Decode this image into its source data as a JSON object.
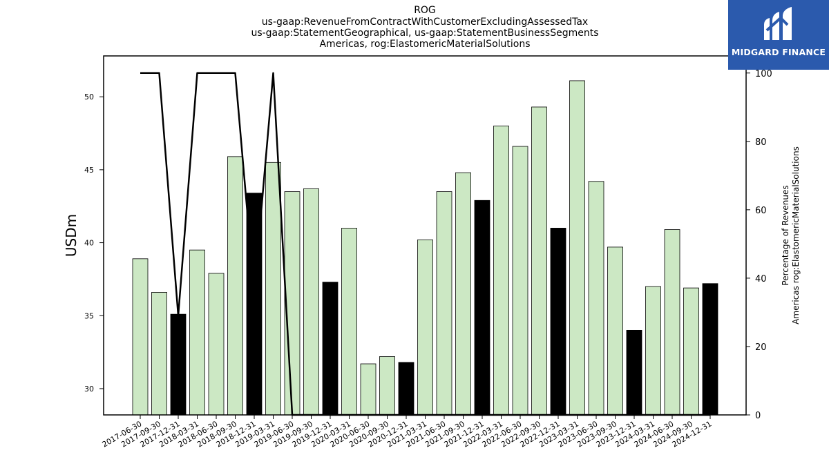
{
  "chart_data": {
    "type": "bar",
    "title_lines": [
      "ROG",
      "us-gaap:RevenueFromContractWithCustomerExcludingAssessedTax",
      "us-gaap:StatementGeographical, us-gaap:StatementBusinessSegments",
      "Americas, rog:ElastomericMaterialSolutions"
    ],
    "ylabel": "USDm",
    "y2label_lines": [
      "Percentage of Revenues",
      "Americas rog:ElastomericMaterialSolutions"
    ],
    "ylim": [
      28.2,
      52.8
    ],
    "y2lim": [
      0,
      105
    ],
    "yticks": [
      30,
      35,
      40,
      45,
      50
    ],
    "y2ticks": [
      0,
      20,
      40,
      60,
      80,
      100
    ],
    "categories": [
      "2017-06-30",
      "2017-09-30",
      "2017-12-31",
      "2018-03-31",
      "2018-06-30",
      "2018-09-30",
      "2018-12-31",
      "2019-03-31",
      "2019-06-30",
      "2019-09-30",
      "2019-12-31",
      "2020-03-31",
      "2020-06-30",
      "2020-09-30",
      "2020-12-31",
      "2021-03-31",
      "2021-06-30",
      "2021-09-30",
      "2021-12-31",
      "2022-03-31",
      "2022-06-30",
      "2022-09-30",
      "2022-12-31",
      "2023-03-31",
      "2023-06-30",
      "2023-09-30",
      "2023-12-31",
      "2024-03-31",
      "2024-06-30",
      "2024-09-30",
      "2024-12-31"
    ],
    "values": [
      38.9,
      36.6,
      35.1,
      39.5,
      37.9,
      45.9,
      43.4,
      45.5,
      43.5,
      43.7,
      37.3,
      41.0,
      31.7,
      32.2,
      31.8,
      40.2,
      43.5,
      44.8,
      42.9,
      48.0,
      46.6,
      49.3,
      41.0,
      51.1,
      44.2,
      39.7,
      34.0,
      37.0,
      40.9,
      36.9,
      37.2
    ],
    "highlight": [
      false,
      false,
      true,
      false,
      false,
      false,
      true,
      false,
      false,
      false,
      true,
      false,
      false,
      false,
      true,
      false,
      false,
      false,
      true,
      false,
      false,
      false,
      true,
      false,
      false,
      false,
      true,
      false,
      false,
      false,
      true
    ],
    "line_values": [
      100,
      100,
      29,
      100,
      100,
      100,
      36,
      100,
      0,
      0,
      0,
      0,
      0,
      0,
      0,
      0,
      0,
      0,
      0,
      0,
      0,
      0,
      0,
      0,
      0,
      0,
      0,
      0,
      0,
      0,
      0
    ],
    "colors": {
      "bar": "#cce8c4",
      "bar_highlight": "#000000",
      "line": "#000000"
    }
  },
  "logo": {
    "text": "MIDGARD FINANCE"
  }
}
